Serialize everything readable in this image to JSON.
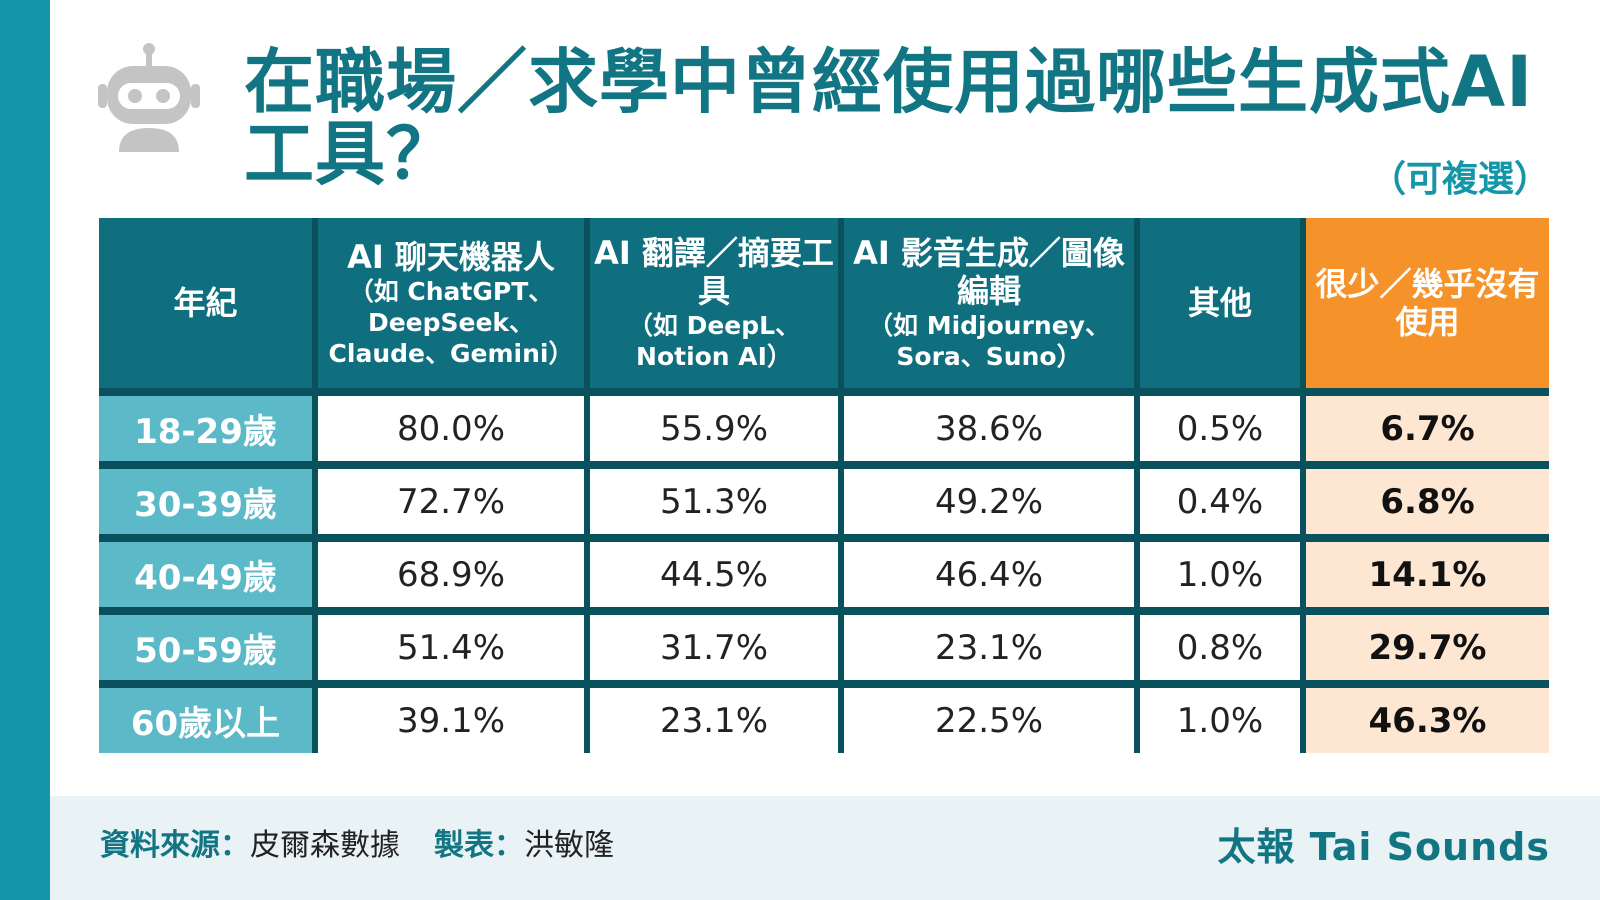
{
  "title": "在職場／求學中曾經使用過哪些生成式AI工具？",
  "note": "（可複選）",
  "icon": "robot-icon",
  "colors": {
    "accent": "#127584",
    "side_bar": "#1596a8",
    "header_bg": "#0f6f7e",
    "age_bg": "#5cb9c8",
    "highlight_header": "#f6922a",
    "highlight_cell": "#fde6d2"
  },
  "chart_data": {
    "type": "table",
    "title": "在職場／求學中曾經使用過哪些生成式AI工具？",
    "columns": [
      {
        "main": "年紀",
        "sub": ""
      },
      {
        "main": "AI 聊天機器人",
        "sub": "（如 ChatGPT、DeepSeek、Claude、Gemini）"
      },
      {
        "main": "AI 翻譯／摘要工具",
        "sub": "（如 DeepL、Notion AI）"
      },
      {
        "main": "AI 影音生成／圖像編輯",
        "sub": "（如 Midjourney、Sora、Suno）"
      },
      {
        "main": "其他",
        "sub": ""
      },
      {
        "main": "很少／幾乎沒有使用",
        "sub": ""
      }
    ],
    "rows": [
      {
        "age": "18-29歲",
        "values": [
          "80.0%",
          "55.9%",
          "38.6%",
          "0.5%",
          "6.7%"
        ]
      },
      {
        "age": "30-39歲",
        "values": [
          "72.7%",
          "51.3%",
          "49.2%",
          "0.4%",
          "6.8%"
        ]
      },
      {
        "age": "40-49歲",
        "values": [
          "68.9%",
          "44.5%",
          "46.4%",
          "1.0%",
          "14.1%"
        ]
      },
      {
        "age": "50-59歲",
        "values": [
          "51.4%",
          "31.7%",
          "23.1%",
          "0.8%",
          "29.7%"
        ]
      },
      {
        "age": "60歲以上",
        "values": [
          "39.1%",
          "23.1%",
          "22.5%",
          "1.0%",
          "46.3%"
        ]
      }
    ]
  },
  "footer": {
    "source_label": "資料來源：",
    "source_value": "皮爾森數據",
    "maker_label": "製表：",
    "maker_value": "洪敏隆",
    "brand": "太報 Tai Sounds"
  }
}
